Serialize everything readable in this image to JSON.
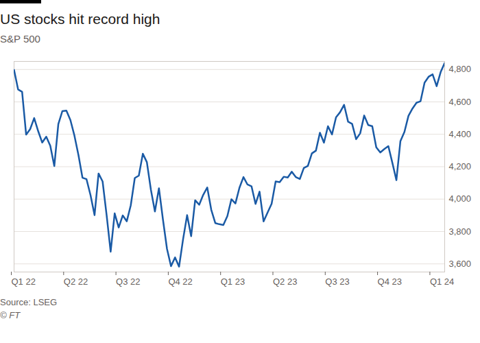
{
  "chart_data": {
    "type": "line",
    "title": "US stocks hit record high",
    "subtitle": "S&P 500",
    "source": "Source: LSEG",
    "credit": "© FT",
    "categories": [
      "Q1 22",
      null,
      null,
      null,
      null,
      null,
      null,
      null,
      null,
      null,
      null,
      null,
      null,
      "Q2 22",
      null,
      null,
      null,
      null,
      null,
      null,
      null,
      null,
      null,
      null,
      null,
      null,
      "Q3 22",
      null,
      null,
      null,
      null,
      null,
      null,
      null,
      null,
      null,
      null,
      null,
      null,
      "Q4 22",
      null,
      null,
      null,
      null,
      null,
      null,
      null,
      null,
      null,
      null,
      null,
      null,
      "Q1 23",
      null,
      null,
      null,
      null,
      null,
      null,
      null,
      null,
      null,
      null,
      null,
      null,
      "Q2 23",
      null,
      null,
      null,
      null,
      null,
      null,
      null,
      null,
      null,
      null,
      null,
      null,
      "Q3 23",
      null,
      null,
      null,
      null,
      null,
      null,
      null,
      null,
      null,
      null,
      null,
      null,
      "Q4 23",
      null,
      null,
      null,
      null,
      null,
      null,
      null,
      null,
      null,
      null,
      null,
      null,
      "Q1 24",
      null,
      null,
      null
    ],
    "values": [
      4797,
      4677,
      4662,
      4398,
      4432,
      4500,
      4419,
      4349,
      4385,
      4329,
      4204,
      4463,
      4543,
      4546,
      4488,
      4392,
      4272,
      4132,
      4123,
      4024,
      3901,
      4158,
      4109,
      3901,
      3675,
      3912,
      3825,
      3899,
      3863,
      3962,
      4130,
      4145,
      4280,
      4228,
      4058,
      3924,
      4067,
      3873,
      3693,
      3586,
      3640,
      3583,
      3753,
      3901,
      3771,
      3993,
      3965,
      4026,
      4072,
      3934,
      3852,
      3845,
      3840,
      3895,
      3999,
      3973,
      4070,
      4136,
      4090,
      4079,
      3970,
      4046,
      3862,
      3917,
      3971,
      4109,
      4105,
      4138,
      4133,
      4169,
      4136,
      4124,
      4192,
      4205,
      4282,
      4299,
      4410,
      4348,
      4450,
      4399,
      4505,
      4536,
      4582,
      4478,
      4464,
      4370,
      4406,
      4516,
      4457,
      4450,
      4320,
      4288,
      4309,
      4327,
      4224,
      4117,
      4358,
      4415,
      4514,
      4559,
      4595,
      4604,
      4719,
      4755,
      4770,
      4697,
      4784,
      4840
    ],
    "color": "#1a5aa5",
    "ylim": [
      3550,
      4850
    ],
    "yticks": [
      3600,
      3800,
      4000,
      4200,
      4400,
      4600,
      4800
    ],
    "grid": true
  }
}
